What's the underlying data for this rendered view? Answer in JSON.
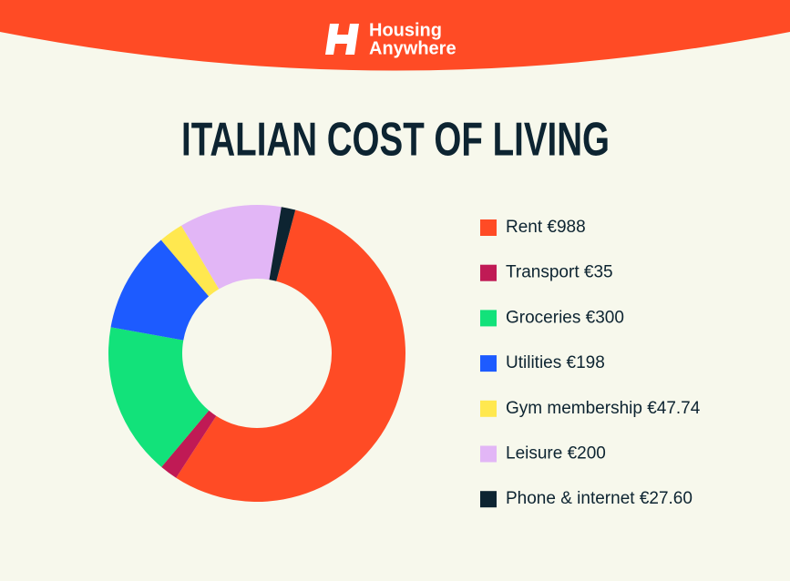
{
  "header": {
    "brand_line1": "Housing",
    "brand_line2": "Anywhere"
  },
  "chart_data": {
    "type": "pie",
    "title": "ITALIAN COST OF LIVING",
    "categories": [
      "Rent",
      "Transport",
      "Groceries",
      "Utilities",
      "Gym membership",
      "Leisure",
      "Phone & internet"
    ],
    "values": [
      988,
      35,
      300,
      198,
      47.74,
      200,
      27.6
    ],
    "value_labels": [
      "€988",
      "€35",
      "€300",
      "€198",
      "€47.74",
      "€200",
      "€27.60"
    ],
    "colors": [
      "#ff4b25",
      "#c01a55",
      "#12e27a",
      "#1d5bff",
      "#ffe84f",
      "#e2b6f6",
      "#0d2431"
    ]
  }
}
